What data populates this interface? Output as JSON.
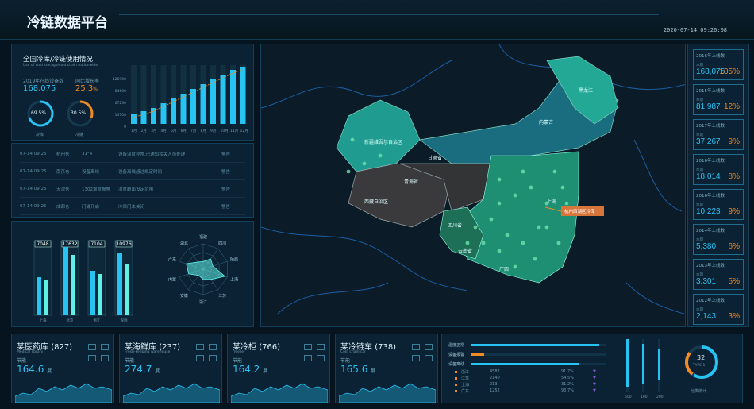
{
  "header": {
    "title": "冷链数据平台",
    "datetime": "2020-07-14 09:26:08"
  },
  "left_top": {
    "title": "全国冷库/冷链使用情况",
    "subtitle": "Use of cold storage/cold chain nationwide",
    "year_label": "2019年在线设备数",
    "year_value": "168,075",
    "growth_label": "同比增长率",
    "growth_value": "25.3",
    "growth_unit": "%",
    "gauge1": {
      "value": "69.5%",
      "label": "冷库",
      "fill": 0.695
    },
    "gauge2": {
      "value": "30.5%",
      "label": "冷链",
      "fill": 0.305
    },
    "y_ticks": [
      "126900",
      "84600",
      "67230",
      "14700",
      "0"
    ],
    "months": [
      "1月",
      "2月",
      "3月",
      "4月",
      "5月",
      "6月",
      "7月",
      "8月",
      "9月",
      "10月",
      "11月",
      "12月"
    ]
  },
  "table": {
    "rows": [
      [
        "07-14 09:25",
        "杭州仓",
        "31°4",
        "设备温度异常,已通知相关人员处理",
        "警告"
      ],
      [
        "07-14 09:25",
        "南京仓",
        "设备离线",
        "设备离线超过规定时间",
        "警告"
      ],
      [
        "07-14 09:25",
        "天津仓",
        "1302湿度报警",
        "湿度超出设定范围",
        "警告"
      ],
      [
        "07-14 09:25",
        "成都仓",
        "门磁开启",
        "冷库门未关闭",
        "警告"
      ]
    ]
  },
  "bars": {
    "labels": [
      "7048",
      "17632",
      "7104",
      "10976"
    ],
    "cities": [
      "上海",
      "北京",
      "浙江",
      "深圳"
    ]
  },
  "radar": {
    "labels": [
      "福建",
      "四川",
      "陕西",
      "上海",
      "江苏",
      "浙江",
      "安徽",
      "内蒙",
      "广东",
      "湖北"
    ]
  },
  "map": {
    "regions": [
      "新疆维吾尔自治区",
      "西藏自治区",
      "青海省",
      "甘肃省",
      "内蒙古",
      "黑龙江",
      "四川省",
      "云南省",
      "广西",
      "上海"
    ],
    "callout": "杭州西湖区冷库"
  },
  "stats": [
    {
      "label": "2016年上线数",
      "value": "168,075",
      "pct": "105%"
    },
    {
      "label": "2015年上线数",
      "value": "81,987",
      "pct": "12%"
    },
    {
      "label": "2017年上线数",
      "value": "37,267",
      "pct": "9%"
    },
    {
      "label": "2016年上线数",
      "value": "18,014",
      "pct": "8%"
    },
    {
      "label": "2016年上线数",
      "value": "10,223",
      "pct": "9%"
    },
    {
      "label": "2014年上线数",
      "value": "5,380",
      "pct": "6%"
    },
    {
      "label": "2013年上线数",
      "value": "3,301",
      "pct": "5%"
    },
    {
      "label": "2012年上线数",
      "value": "2,143",
      "pct": "3%"
    }
  ],
  "stats_quarter": "本期",
  "cards": [
    {
      "title": "某医药库",
      "count": "(827)",
      "sub": "Medical library",
      "caption": "节能",
      "value": "164.6",
      "unit": "度"
    },
    {
      "title": "某海鲜库",
      "count": "(237)",
      "sub": "Fresh-keeping warehouse",
      "caption": "节能",
      "value": "274.7",
      "unit": "度"
    },
    {
      "title": "某冷柜",
      "count": "(766)",
      "sub": "freezer",
      "caption": "节能",
      "value": "164.2",
      "unit": "度"
    },
    {
      "title": "某冷链车",
      "count": "(738)",
      "sub": "Cold chain car",
      "caption": "节能",
      "value": "165.6",
      "unit": "度"
    }
  ],
  "right_bottom": {
    "bar_labels": [
      "温度正常",
      "设备报警",
      "设备离线"
    ],
    "rows": [
      [
        "浙江",
        "4582",
        "91.7%"
      ],
      [
        "江苏",
        "2140",
        "54.5%"
      ],
      [
        "上海",
        "213",
        "31.2%"
      ],
      [
        "广东",
        "1252",
        "93.7%"
      ]
    ],
    "vticks": [
      "500",
      "100",
      "200"
    ],
    "gauge_value": "32",
    "gauge_label": "TYPE 1",
    "gauge_caption": "分类统计"
  },
  "colors": {
    "accent": "#27c3f3",
    "orange": "#f08a24",
    "panel": "#0a2233",
    "bg": "#06141f"
  }
}
